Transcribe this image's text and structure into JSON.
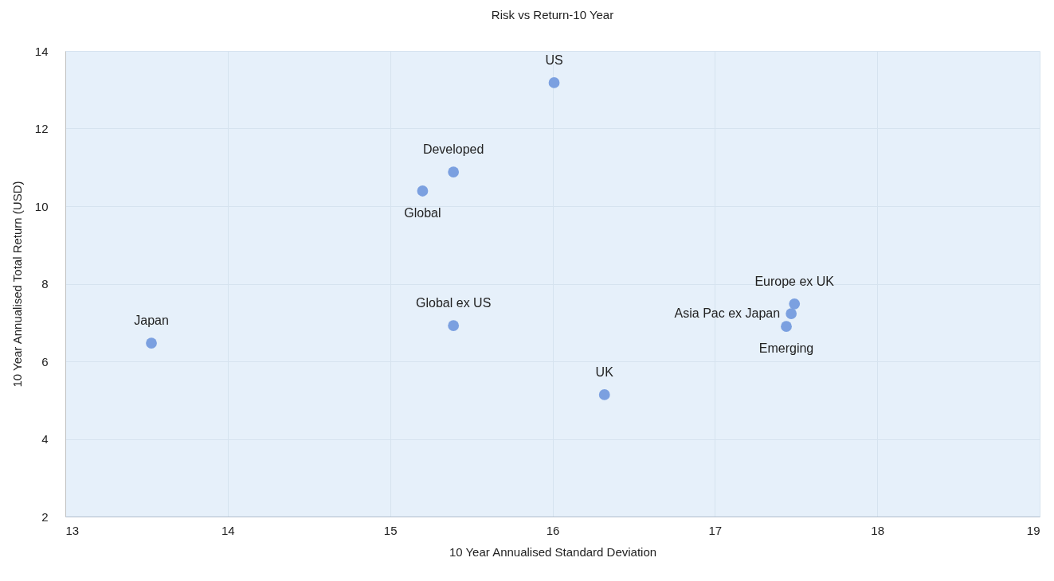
{
  "chart_data": {
    "type": "scatter",
    "title": "Risk vs Return-10 Year",
    "xlabel": "10 Year Annualised Standard Deviation",
    "ylabel": "10 Year Annualised Total Return (USD)",
    "x": [
      16.01,
      15.39,
      15.2,
      13.53,
      15.39,
      16.32,
      17.49,
      17.47,
      17.44
    ],
    "series": [
      {
        "color": "#7ba0e0",
        "values": [
          13.18,
          10.88,
          10.39,
          6.47,
          6.92,
          5.14,
          7.48,
          7.23,
          6.9
        ]
      }
    ],
    "annotations": [
      {
        "text": "US",
        "x": 16.01,
        "y": 13.18
      },
      {
        "text": "Developed",
        "x": 15.39,
        "y": 10.88
      },
      {
        "text": "Global",
        "x": 15.2,
        "y": 10.39
      },
      {
        "text": "Japan",
        "x": 13.53,
        "y": 6.47
      },
      {
        "text": "Global ex US",
        "x": 15.39,
        "y": 6.92
      },
      {
        "text": "UK",
        "x": 16.32,
        "y": 5.14
      },
      {
        "text": "Europe ex UK",
        "x": 17.49,
        "y": 7.48
      },
      {
        "text": "Asia Pac ex Japan",
        "x": 17.47,
        "y": 7.23
      },
      {
        "text": "Emerging",
        "x": 17.44,
        "y": 6.9
      }
    ],
    "xlim": [
      13,
      19
    ],
    "xticks": [
      13,
      14,
      15,
      16,
      17,
      18,
      19
    ],
    "ylim": [
      2,
      14
    ],
    "yticks": [
      2,
      4,
      6,
      8,
      10,
      12,
      14
    ],
    "grid": true,
    "marker": "circle"
  }
}
